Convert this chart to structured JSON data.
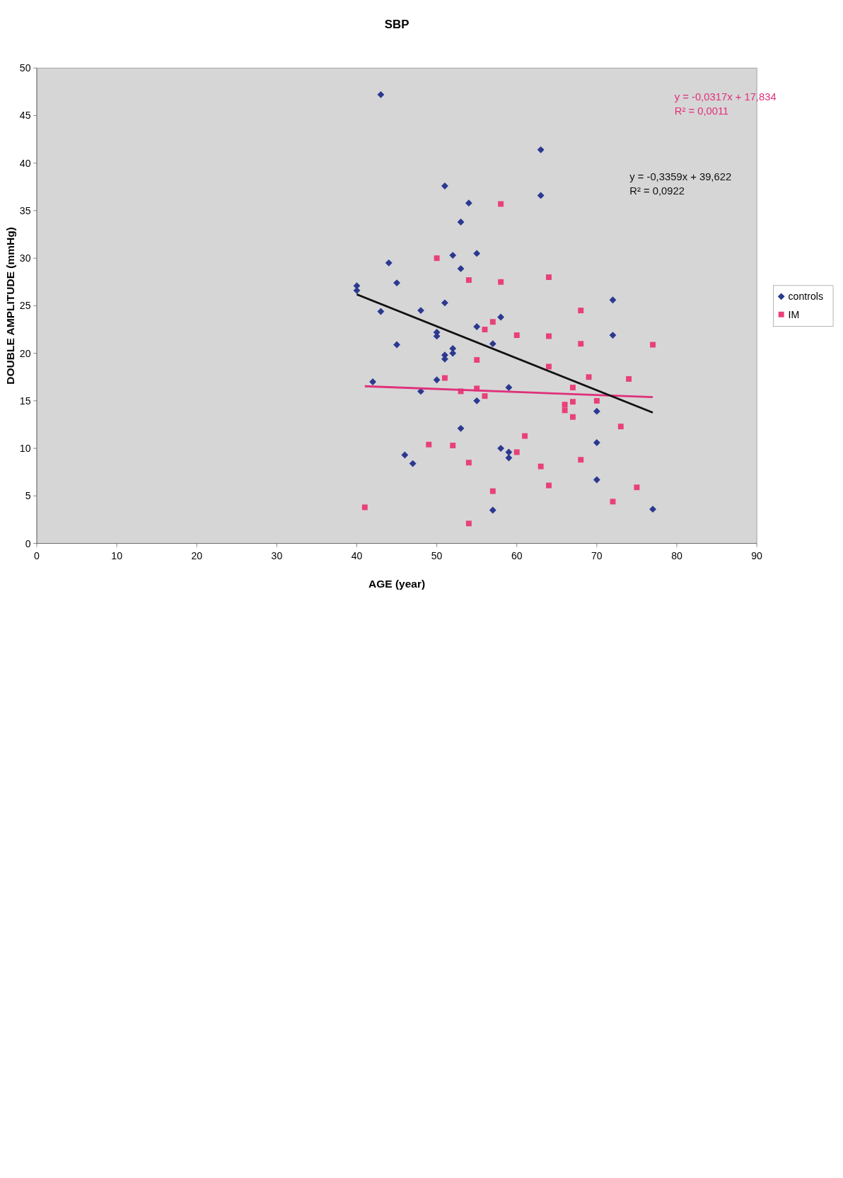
{
  "chart_data": {
    "type": "scatter",
    "title": "SBP",
    "xlabel": "AGE (year)",
    "ylabel": "DOUBLE AMPLITUDE (mmHg)",
    "xlim": [
      0,
      90
    ],
    "xticks": [
      0,
      10,
      20,
      30,
      40,
      50,
      60,
      70,
      80,
      90
    ],
    "ylim": [
      0,
      50
    ],
    "yticks": [
      0,
      5,
      10,
      15,
      20,
      25,
      30,
      35,
      40,
      45,
      50
    ],
    "grid": false,
    "legend": "right",
    "annotations": [
      "y = -0,0317x + 17,834",
      "R² = 0,0011",
      "y = -0,3359x + 39,622",
      "R² = 0,0922"
    ],
    "series": [
      {
        "name": "controls",
        "color": "#2b3990",
        "marker": "diamond",
        "x": [
          43,
          63,
          63,
          51,
          54,
          53,
          55,
          52,
          53,
          44,
          45,
          51,
          72,
          40,
          40,
          48,
          43,
          58,
          55,
          50,
          50,
          72,
          57,
          45,
          52,
          52,
          51,
          51,
          50,
          42,
          59,
          48,
          55,
          70,
          53,
          70,
          58,
          59,
          59,
          46,
          47,
          70,
          77,
          57
        ],
        "values": [
          47.2,
          41.4,
          36.6,
          37.6,
          35.8,
          33.8,
          30.5,
          30.3,
          28.9,
          29.5,
          27.4,
          25.3,
          25.6,
          27.1,
          26.6,
          24.5,
          24.4,
          23.8,
          22.8,
          22.2,
          21.8,
          21.9,
          21.0,
          20.9,
          20.5,
          20.0,
          19.8,
          19.4,
          17.2,
          17.0,
          16.4,
          16.0,
          15.0,
          13.9,
          12.1,
          10.6,
          10.0,
          9.6,
          9.0,
          9.3,
          8.4,
          6.7,
          3.6,
          3.5
        ]
      },
      {
        "name": "IM",
        "color": "#e8407a",
        "marker": "square",
        "x": [
          41,
          54,
          57,
          72,
          75,
          64,
          63,
          54,
          68,
          60,
          52,
          49,
          61,
          73,
          67,
          66,
          66,
          70,
          67,
          67,
          56,
          55,
          53,
          51,
          74,
          69,
          64,
          55,
          77,
          68,
          64,
          60,
          56,
          57,
          68,
          54,
          58,
          64,
          50,
          58
        ],
        "values": [
          3.8,
          2.1,
          5.5,
          4.4,
          5.9,
          6.1,
          8.1,
          8.5,
          8.8,
          9.6,
          10.3,
          10.4,
          11.3,
          12.3,
          13.3,
          14.0,
          14.6,
          15.0,
          14.9,
          16.4,
          15.5,
          16.3,
          16.0,
          17.4,
          17.3,
          17.5,
          18.6,
          19.3,
          20.9,
          21.0,
          21.8,
          21.9,
          22.5,
          23.3,
          24.5,
          27.7,
          27.5,
          28.0,
          30.0,
          35.7
        ]
      },
      {
        "type": "line",
        "color": "#e0307a",
        "x": [
          41,
          77
        ],
        "values": [
          16.53,
          15.39
        ]
      },
      {
        "type": "line",
        "color": "#111111",
        "x": [
          40,
          77
        ],
        "values": [
          26.19,
          13.76
        ]
      }
    ]
  }
}
